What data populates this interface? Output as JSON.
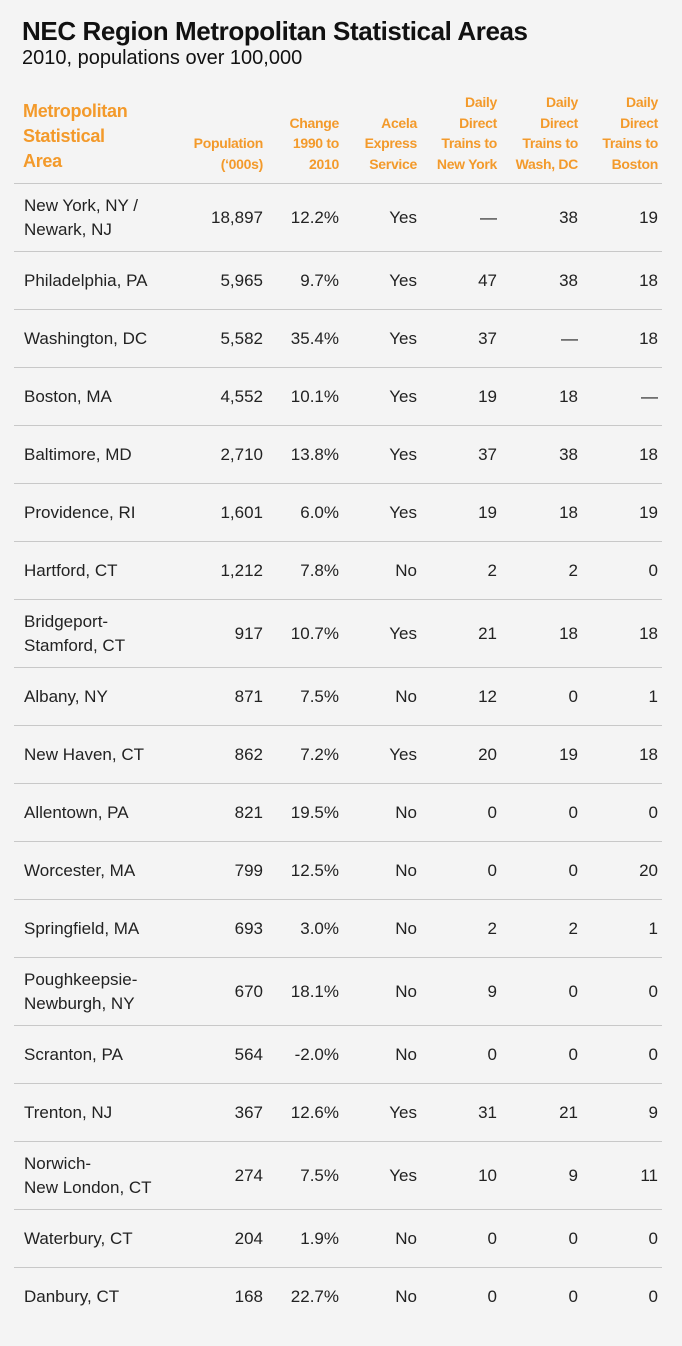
{
  "header": {
    "title": "NEC Region Metropolitan Statistical Areas",
    "subtitle": "2010, populations over 100,000"
  },
  "table": {
    "columns": [
      "Metropolitan\nStatistical\nArea",
      "Population\n(‘000s)",
      "Change\n1990 to\n2010",
      "Acela\nExpress\nService",
      "Daily\nDirect\nTrains to\nNew York",
      "Daily\nDirect\nTrains to\nWash, DC",
      "Daily\nDirect\nTrains to\nBoston"
    ],
    "rows": [
      [
        "New York, NY /\nNewark, NJ",
        "18,897",
        "12.2%",
        "Yes",
        "—",
        "38",
        "19"
      ],
      [
        "Philadelphia, PA",
        "5,965",
        "9.7%",
        "Yes",
        "47",
        "38",
        "18"
      ],
      [
        "Washington, DC",
        "5,582",
        "35.4%",
        "Yes",
        "37",
        "—",
        "18"
      ],
      [
        "Boston, MA",
        "4,552",
        "10.1%",
        "Yes",
        "19",
        "18",
        "—"
      ],
      [
        "Baltimore, MD",
        "2,710",
        "13.8%",
        "Yes",
        "37",
        "38",
        "18"
      ],
      [
        "Providence, RI",
        "1,601",
        "6.0%",
        "Yes",
        "19",
        "18",
        "19"
      ],
      [
        "Hartford, CT",
        "1,212",
        "7.8%",
        "No",
        "2",
        "2",
        "0"
      ],
      [
        "Bridgeport-\nStamford, CT",
        "917",
        "10.7%",
        "Yes",
        "21",
        "18",
        "18"
      ],
      [
        "Albany, NY",
        "871",
        "7.5%",
        "No",
        "12",
        "0",
        "1"
      ],
      [
        "New Haven, CT",
        "862",
        "7.2%",
        "Yes",
        "20",
        "19",
        "18"
      ],
      [
        "Allentown, PA",
        "821",
        "19.5%",
        "No",
        "0",
        "0",
        "0"
      ],
      [
        "Worcester, MA",
        "799",
        "12.5%",
        "No",
        "0",
        "0",
        "20"
      ],
      [
        "Springfield, MA",
        "693",
        "3.0%",
        "No",
        "2",
        "2",
        "1"
      ],
      [
        "Poughkeepsie-\nNewburgh, NY",
        "670",
        "18.1%",
        "No",
        "9",
        "0",
        "0"
      ],
      [
        "Scranton, PA",
        "564",
        "-2.0%",
        "No",
        "0",
        "0",
        "0"
      ],
      [
        "Trenton, NJ",
        "367",
        "12.6%",
        "Yes",
        "31",
        "21",
        "9"
      ],
      [
        "Norwich-\nNew London, CT",
        "274",
        "7.5%",
        "Yes",
        "10",
        "9",
        "11"
      ],
      [
        "Waterbury, CT",
        "204",
        "1.9%",
        "No",
        "0",
        "0",
        "0"
      ],
      [
        "Danbury, CT",
        "168",
        "22.7%",
        "No",
        "0",
        "0",
        "0"
      ]
    ]
  }
}
